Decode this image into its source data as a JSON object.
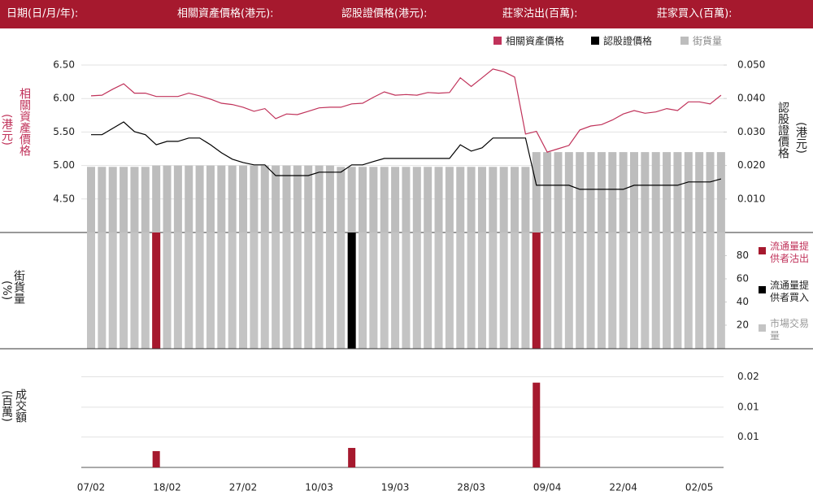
{
  "header": {
    "labels": [
      "日期(日/月/年):",
      "相關資產價格(港元):",
      "認股證價格(港元):",
      "莊家沽出(百萬):",
      "莊家買入(百萬):"
    ]
  },
  "chart_data": [
    {
      "type": "line",
      "ylabel": "相關資產價格",
      "ylabel_unit": "(港元)",
      "y2label": "認股證價格",
      "y2label_unit": "(港元)",
      "ylim": [
        4.0,
        6.5
      ],
      "yticks": [
        {
          "value": 4.5,
          "label": "4.50"
        },
        {
          "value": 5.0,
          "label": "5.00"
        },
        {
          "value": 5.5,
          "label": "5.50"
        },
        {
          "value": 6.0,
          "label": "6.00"
        },
        {
          "value": 6.5,
          "label": "6.50"
        }
      ],
      "y2lim": [
        0,
        0.05
      ],
      "y2ticks": [
        {
          "value": 0.01,
          "label": "0.010"
        },
        {
          "value": 0.02,
          "label": "0.020"
        },
        {
          "value": 0.03,
          "label": "0.030"
        },
        {
          "value": 0.04,
          "label": "0.040"
        },
        {
          "value": 0.05,
          "label": "0.050"
        }
      ],
      "grid": true,
      "series": [
        {
          "name": "相關資產價格",
          "color": "#c0325a",
          "values": [
            6.04,
            6.05,
            6.14,
            6.22,
            6.08,
            6.08,
            6.03,
            6.03,
            6.03,
            6.08,
            6.04,
            5.99,
            5.93,
            5.91,
            5.87,
            5.81,
            5.85,
            5.7,
            5.77,
            5.76,
            5.81,
            5.86,
            5.87,
            5.87,
            5.92,
            5.93,
            6.02,
            6.1,
            6.05,
            6.06,
            6.05,
            6.09,
            6.08,
            6.09,
            6.31,
            6.18,
            6.31,
            6.44,
            6.4,
            6.32,
            5.47,
            5.51,
            5.2,
            5.25,
            5.3,
            5.53,
            5.59,
            5.61,
            5.68,
            5.77,
            5.82,
            5.78,
            5.8,
            5.85,
            5.82,
            5.95,
            5.95,
            5.92,
            6.05
          ]
        },
        {
          "name": "認股證價格",
          "color": "#000000",
          "axis": "y2",
          "values": [
            0.0292,
            0.0292,
            0.0311,
            0.033,
            0.0301,
            0.0292,
            0.0262,
            0.0272,
            0.0272,
            0.0282,
            0.0282,
            0.0262,
            0.0238,
            0.0219,
            0.0209,
            0.0202,
            0.0202,
            0.017,
            0.017,
            0.017,
            0.017,
            0.018,
            0.018,
            0.018,
            0.0202,
            0.0202,
            0.0212,
            0.0221,
            0.0221,
            0.0221,
            0.0221,
            0.0221,
            0.0221,
            0.0221,
            0.0262,
            0.0243,
            0.0253,
            0.0282,
            0.0282,
            0.0282,
            0.0282,
            0.0141,
            0.0141,
            0.0141,
            0.0141,
            0.0129,
            0.0129,
            0.0129,
            0.0129,
            0.0129,
            0.0141,
            0.0141,
            0.0141,
            0.0141,
            0.0141,
            0.0151,
            0.0151,
            0.0151,
            0.016
          ]
        },
        {
          "name": "街貨量",
          "color": "#bdbdbd",
          "type": "bar",
          "values": [
            4.98,
            4.98,
            4.98,
            4.98,
            4.98,
            4.98,
            5.0,
            5.0,
            5.0,
            5.0,
            5.0,
            5.0,
            5.0,
            5.0,
            5.0,
            5.0,
            5.0,
            5.0,
            5.0,
            5.0,
            5.0,
            5.0,
            5.0,
            4.98,
            4.98,
            4.98,
            4.98,
            4.98,
            4.98,
            4.98,
            4.98,
            4.98,
            4.98,
            4.98,
            4.98,
            4.98,
            4.98,
            4.98,
            4.98,
            4.98,
            4.98,
            5.2,
            5.2,
            5.2,
            5.2,
            5.2,
            5.2,
            5.2,
            5.2,
            5.2,
            5.2,
            5.2,
            5.2,
            5.2,
            5.2,
            5.2,
            5.2,
            5.2,
            5.2
          ]
        }
      ]
    },
    {
      "type": "bar",
      "ylabel": "街貨量",
      "ylabel_unit": "(%)",
      "ylim": [
        0,
        100
      ],
      "yticks": [
        20,
        40,
        60,
        80
      ],
      "series": [
        {
          "name": "流通量提供者沽出",
          "color": "#a6192e",
          "values": [
            null,
            null,
            null,
            null,
            null,
            null,
            100,
            null,
            null,
            null,
            null,
            null,
            null,
            null,
            null,
            null,
            null,
            null,
            null,
            null,
            null,
            null,
            null,
            null,
            null,
            null,
            null,
            null,
            null,
            null,
            null,
            null,
            null,
            null,
            null,
            null,
            null,
            null,
            null,
            null,
            null,
            100,
            null,
            null,
            null,
            null,
            null,
            null,
            null,
            null,
            null,
            null,
            null,
            null,
            null,
            null,
            null,
            null,
            null
          ]
        },
        {
          "name": "流通量提供者買入",
          "color": "#000000",
          "values": [
            null,
            null,
            null,
            null,
            null,
            null,
            null,
            null,
            null,
            null,
            null,
            null,
            null,
            null,
            null,
            null,
            null,
            null,
            null,
            null,
            null,
            null,
            null,
            null,
            100,
            null,
            null,
            null,
            null,
            null,
            null,
            null,
            null,
            null,
            null,
            null,
            null,
            null,
            null,
            null,
            null,
            null,
            null,
            null,
            null,
            null,
            null,
            null,
            null,
            null,
            null,
            null,
            null,
            null,
            null,
            null,
            null,
            null,
            null
          ]
        },
        {
          "name": "市場交易量",
          "color": "#c4c4c4",
          "values": [
            100,
            100,
            100,
            100,
            100,
            100,
            100,
            100,
            100,
            100,
            100,
            100,
            100,
            100,
            100,
            100,
            100,
            100,
            100,
            100,
            100,
            100,
            100,
            100,
            100,
            100,
            100,
            100,
            100,
            100,
            100,
            100,
            100,
            100,
            100,
            100,
            100,
            100,
            100,
            100,
            100,
            100,
            100,
            100,
            100,
            100,
            100,
            100,
            100,
            100,
            100,
            100,
            100,
            100,
            100,
            100,
            100,
            100,
            100
          ]
        }
      ]
    },
    {
      "type": "bar",
      "ylabel": "成交額",
      "ylabel_unit": "(百萬)",
      "ylim": [
        0,
        0.026
      ],
      "yticks": [
        {
          "value": 0.0067,
          "label": "0.01"
        },
        {
          "value": 0.0133,
          "label": "0.01"
        },
        {
          "value": 0.02,
          "label": "0.02"
        }
      ],
      "grid": true,
      "categories": [
        "07/02",
        null,
        null,
        null,
        null,
        null,
        null,
        "18/02",
        null,
        null,
        null,
        null,
        null,
        null,
        "27/02",
        null,
        null,
        null,
        null,
        null,
        null,
        "10/03",
        null,
        null,
        null,
        null,
        null,
        null,
        "19/03",
        null,
        null,
        null,
        null,
        null,
        null,
        "28/03",
        null,
        null,
        null,
        null,
        null,
        null,
        "09/04",
        null,
        null,
        null,
        null,
        null,
        null,
        "22/04",
        null,
        null,
        null,
        null,
        null,
        null,
        "02/05",
        null,
        null
      ],
      "color": "#a6192e",
      "values": [
        null,
        null,
        null,
        null,
        null,
        null,
        0.0036,
        null,
        null,
        null,
        null,
        null,
        null,
        null,
        null,
        null,
        null,
        null,
        null,
        null,
        null,
        null,
        null,
        null,
        0.0043,
        null,
        null,
        null,
        null,
        null,
        null,
        null,
        null,
        null,
        null,
        null,
        null,
        null,
        null,
        null,
        null,
        0.0187,
        null,
        null,
        null,
        null,
        null,
        null,
        null,
        null,
        null,
        null,
        null,
        null,
        null,
        null,
        null,
        null,
        null
      ]
    }
  ]
}
